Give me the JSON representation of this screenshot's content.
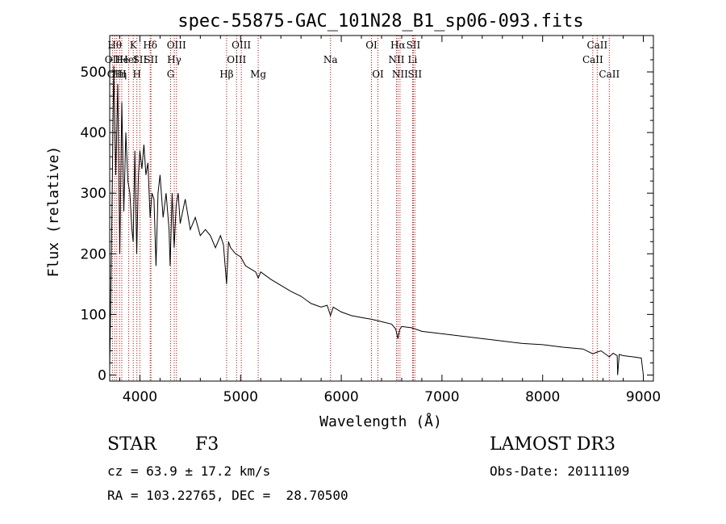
{
  "chart_data": {
    "type": "line",
    "title": "spec-55875-GAC_101N28_B1_sp06-093.fits",
    "xlabel": "Wavelength (Å)",
    "ylabel": "Flux (relative)",
    "xlim": [
      3700,
      9100
    ],
    "ylim": [
      -10,
      560
    ],
    "xticks": [
      4000,
      5000,
      6000,
      7000,
      8000,
      9000
    ],
    "yticks": [
      0,
      100,
      200,
      300,
      400,
      500
    ],
    "grid": false,
    "series": [
      {
        "name": "spectrum",
        "x": [
          3700,
          3720,
          3740,
          3760,
          3780,
          3800,
          3820,
          3840,
          3860,
          3880,
          3900,
          3920,
          3933,
          3950,
          3968,
          3985,
          4000,
          4020,
          4040,
          4060,
          4080,
          4101,
          4120,
          4140,
          4160,
          4180,
          4200,
          4230,
          4260,
          4290,
          4300,
          4320,
          4340,
          4360,
          4380,
          4400,
          4450,
          4500,
          4550,
          4600,
          4650,
          4700,
          4750,
          4800,
          4830,
          4861,
          4880,
          4900,
          4950,
          5000,
          5050,
          5100,
          5150,
          5175,
          5200,
          5300,
          5400,
          5500,
          5600,
          5700,
          5800,
          5860,
          5893,
          5920,
          6000,
          6100,
          6200,
          6300,
          6400,
          6500,
          6540,
          6563,
          6580,
          6600,
          6700,
          6800,
          7000,
          7200,
          7400,
          7600,
          7800,
          8000,
          8200,
          8400,
          8498,
          8542,
          8580,
          8662,
          8700,
          8740,
          8745,
          8760,
          8800,
          8900,
          8980,
          9000
        ],
        "y": [
          10,
          240,
          510,
          330,
          480,
          200,
          450,
          270,
          400,
          320,
          300,
          240,
          220,
          370,
          200,
          330,
          370,
          340,
          380,
          330,
          350,
          260,
          300,
          290,
          180,
          300,
          330,
          260,
          300,
          240,
          180,
          300,
          210,
          280,
          300,
          250,
          290,
          240,
          260,
          230,
          240,
          230,
          210,
          230,
          215,
          150,
          220,
          210,
          200,
          195,
          180,
          175,
          170,
          160,
          170,
          158,
          148,
          138,
          130,
          118,
          112,
          115,
          98,
          112,
          104,
          98,
          95,
          92,
          88,
          84,
          76,
          60,
          75,
          80,
          78,
          72,
          68,
          64,
          60,
          56,
          52,
          50,
          46,
          43,
          35,
          38,
          40,
          30,
          36,
          32,
          0,
          34,
          32,
          30,
          28,
          0
        ]
      }
    ],
    "emission_lines": [
      {
        "x": 3727,
        "label": "OII",
        "row": 1
      },
      {
        "x": 3750,
        "label": "Hθ",
        "row": 0
      },
      {
        "x": 3770,
        "label": "OIII",
        "row": 2
      },
      {
        "x": 3798,
        "label": "Hη",
        "row": 2
      },
      {
        "x": 3820,
        "label": "He",
        "row": 1
      },
      {
        "x": 3889,
        "label": "HeI",
        "row": 1
      },
      {
        "x": 3934,
        "label": "K",
        "row": 0
      },
      {
        "x": 3970,
        "label": "H",
        "row": 2
      },
      {
        "x": 4000,
        "label": "SII",
        "row": 1
      },
      {
        "x": 4102,
        "label": "Hδ",
        "row": 0
      },
      {
        "x": 4110,
        "label": "SII",
        "row": 1
      },
      {
        "x": 4305,
        "label": "G",
        "row": 2
      },
      {
        "x": 4341,
        "label": "Hγ",
        "row": 1
      },
      {
        "x": 4363,
        "label": "OIII",
        "row": 0
      },
      {
        "x": 4861,
        "label": "Hβ",
        "row": 2
      },
      {
        "x": 4960,
        "label": "OIII",
        "row": 1
      },
      {
        "x": 5007,
        "label": "OIII",
        "row": 0
      },
      {
        "x": 5175,
        "label": "Mg",
        "row": 2
      },
      {
        "x": 5893,
        "label": "Na",
        "row": 1
      },
      {
        "x": 6300,
        "label": "OI",
        "row": 0
      },
      {
        "x": 6364,
        "label": "OI",
        "row": 2
      },
      {
        "x": 6548,
        "label": "NII",
        "row": 1
      },
      {
        "x": 6563,
        "label": "Hα",
        "row": 0
      },
      {
        "x": 6583,
        "label": "NII",
        "row": 2
      },
      {
        "x": 6716,
        "label": "SII",
        "row": 0
      },
      {
        "x": 6708,
        "label": "Li",
        "row": 1
      },
      {
        "x": 6731,
        "label": "SII",
        "row": 2
      },
      {
        "x": 8498,
        "label": "CaII",
        "row": 1
      },
      {
        "x": 8542,
        "label": "CaII",
        "row": 0
      },
      {
        "x": 8662,
        "label": "CaII",
        "row": 2
      }
    ]
  },
  "info": {
    "class_label": "STAR",
    "subclass": "F3",
    "survey": "LAMOST DR3",
    "cz": "cz = 63.9 ± 17.2 km/s",
    "obs_date": "Obs-Date: 20111109",
    "radec": "RA = 103.22765, DEC =  28.70500"
  },
  "colors": {
    "line": "#000000",
    "marker": "#cc0000"
  }
}
